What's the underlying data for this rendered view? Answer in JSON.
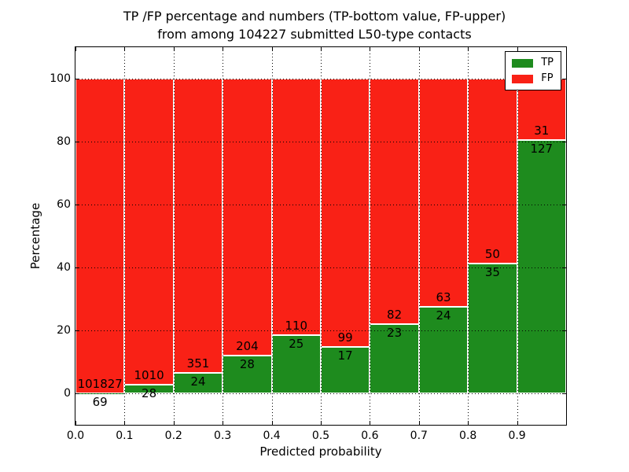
{
  "title": {
    "line1": "TP /FP percentage and numbers (TP-bottom value, FP-upper)",
    "line2": "from among 104227 submitted L50-type contacts"
  },
  "chart_data": {
    "type": "bar",
    "stacked": true,
    "title": "TP /FP percentage and numbers (TP-bottom value, FP-upper) from among 104227 submitted L50-type contacts",
    "xlabel": "Predicted probability",
    "ylabel": "Percentage",
    "xlim": [
      0.0,
      1.0
    ],
    "ylim": [
      -10,
      110
    ],
    "bar_width": 0.1,
    "bin_starts": [
      0.0,
      0.1,
      0.2,
      0.3,
      0.4,
      0.5,
      0.6,
      0.7,
      0.8,
      0.9
    ],
    "xtick_labels": [
      "0.0",
      "0.1",
      "0.2",
      "0.3",
      "0.4",
      "0.5",
      "0.6",
      "0.7",
      "0.8",
      "0.9"
    ],
    "ytick_values": [
      0,
      20,
      40,
      60,
      80,
      100
    ],
    "grid": "dotted, both axes",
    "total_contacts": 104227,
    "series": [
      {
        "name": "TP",
        "color": "#1e8b1e",
        "counts": [
          69,
          28,
          24,
          28,
          25,
          17,
          23,
          24,
          35,
          127
        ]
      },
      {
        "name": "FP",
        "color": "#f92116",
        "counts": [
          101827,
          1010,
          351,
          204,
          110,
          99,
          82,
          63,
          50,
          31
        ]
      }
    ],
    "percent_tp": [
      0.07,
      2.7,
      6.4,
      12.07,
      18.52,
      14.66,
      21.9,
      27.59,
      41.18,
      80.38
    ],
    "legend": {
      "position": "upper right",
      "entries": [
        {
          "label": "TP",
          "color": "#1e8b1e"
        },
        {
          "label": "FP",
          "color": "#f92116"
        }
      ]
    }
  }
}
